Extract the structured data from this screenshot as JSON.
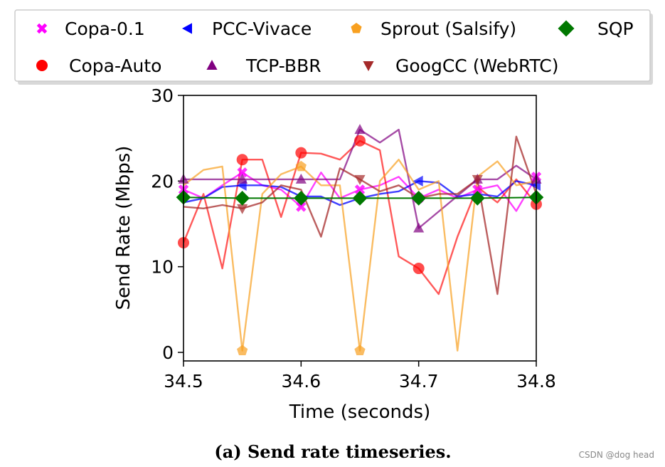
{
  "chart_data": {
    "type": "line",
    "xlabel": "Time (seconds)",
    "ylabel": "Send Rate (Mbps)",
    "xlim": [
      34.5,
      34.8
    ],
    "ylim": [
      -1,
      30
    ],
    "xticks": [
      34.5,
      34.6,
      34.7,
      34.8
    ],
    "xtick_labels": [
      "34.5",
      "34.6",
      "34.7",
      "34.8"
    ],
    "yticks": [
      0,
      10,
      20,
      30
    ],
    "ytick_labels": [
      "0",
      "10",
      "20",
      "30"
    ],
    "legend_position": "top",
    "series": [
      {
        "name": "Copa-0.1",
        "color": "#ff00ff",
        "marker": "x",
        "line_alpha": 0.75,
        "x": [
          34.5,
          34.517,
          34.533,
          34.55,
          34.567,
          34.583,
          34.6,
          34.617,
          34.633,
          34.65,
          34.667,
          34.683,
          34.7,
          34.717,
          34.733,
          34.75,
          34.767,
          34.783,
          34.8
        ],
        "y": [
          19,
          18,
          19.5,
          21,
          19.5,
          19,
          17,
          21,
          18,
          19,
          19.5,
          20.5,
          18,
          19,
          18,
          19,
          19.5,
          16.5,
          20.5
        ],
        "marker_x": [
          34.5,
          34.55,
          34.6,
          34.65,
          34.7,
          34.75,
          34.8
        ],
        "marker_y": [
          19,
          21,
          17,
          19,
          18,
          19,
          20.5
        ]
      },
      {
        "name": "Copa-Auto",
        "color": "#ff0000",
        "marker": "circle",
        "line_alpha": 0.65,
        "x": [
          34.5,
          34.517,
          34.533,
          34.55,
          34.567,
          34.583,
          34.6,
          34.617,
          34.633,
          34.65,
          34.667,
          34.683,
          34.7,
          34.717,
          34.733,
          34.75,
          34.767,
          34.783,
          34.8
        ],
        "y": [
          12.8,
          18.5,
          9.8,
          22.5,
          22.5,
          15.8,
          23.3,
          23.2,
          22.5,
          24.7,
          23.6,
          11.2,
          9.8,
          6.8,
          13.5,
          19.3,
          17.5,
          20.2,
          17.3
        ],
        "marker_x": [
          34.5,
          34.55,
          34.6,
          34.65,
          34.7,
          34.8
        ],
        "marker_y": [
          12.8,
          22.5,
          23.3,
          24.7,
          9.8,
          17.3
        ]
      },
      {
        "name": "PCC-Vivace",
        "color": "#0000ff",
        "marker": "triangle-left",
        "line_alpha": 0.75,
        "x": [
          34.5,
          34.517,
          34.533,
          34.55,
          34.567,
          34.583,
          34.6,
          34.617,
          34.633,
          34.65,
          34.667,
          34.683,
          34.7,
          34.717,
          34.733,
          34.75,
          34.767,
          34.783,
          34.8
        ],
        "y": [
          17.5,
          18.0,
          19.3,
          19.5,
          19.5,
          19.3,
          18.2,
          18.2,
          17.2,
          18.0,
          18.5,
          18.8,
          20.0,
          19.8,
          18.2,
          18.5,
          18.2,
          20.0,
          19.5
        ],
        "marker_x": [
          34.55,
          34.7,
          34.8
        ],
        "marker_y": [
          19.5,
          20.0,
          19.5
        ]
      },
      {
        "name": "TCP-BBR",
        "color": "#800080",
        "marker": "triangle-up",
        "line_alpha": 0.7,
        "x": [
          34.5,
          34.55,
          34.6,
          34.633,
          34.65,
          34.667,
          34.683,
          34.7,
          34.75,
          34.767,
          34.783,
          34.8
        ],
        "y": [
          20.2,
          20.2,
          20.2,
          20.2,
          26.0,
          24.5,
          26.0,
          14.5,
          20.2,
          20.2,
          21.8,
          20.2
        ],
        "marker_x": [
          34.5,
          34.55,
          34.6,
          34.65,
          34.7,
          34.75,
          34.8
        ],
        "marker_y": [
          20.2,
          20.2,
          20.2,
          26.0,
          14.5,
          20.2,
          20.2
        ]
      },
      {
        "name": "Sprout (Salsify)",
        "color": "#f8a020",
        "marker": "pentagon",
        "line_alpha": 0.7,
        "x": [
          34.5,
          34.517,
          34.533,
          34.55,
          34.567,
          34.583,
          34.6,
          34.617,
          34.633,
          34.65,
          34.667,
          34.683,
          34.7,
          34.717,
          34.733,
          34.75,
          34.767,
          34.783,
          34.8
        ],
        "y": [
          19.5,
          21.3,
          21.7,
          0.2,
          18.5,
          20.8,
          21.7,
          19.5,
          19.5,
          0.2,
          20.0,
          22.5,
          19.0,
          20.0,
          0.2,
          20.5,
          22.3,
          19.5,
          20.0
        ],
        "marker_x": [
          34.55,
          34.6,
          34.65
        ],
        "marker_y": [
          0.2,
          21.7,
          0.2
        ]
      },
      {
        "name": "GoogCC (WebRTC)",
        "color": "#a52a2a",
        "marker": "triangle-down",
        "line_alpha": 0.75,
        "x": [
          34.5,
          34.517,
          34.533,
          34.55,
          34.567,
          34.583,
          34.6,
          34.617,
          34.633,
          34.65,
          34.667,
          34.683,
          34.7,
          34.717,
          34.733,
          34.75,
          34.767,
          34.783,
          34.8
        ],
        "y": [
          17.0,
          16.8,
          17.2,
          16.8,
          17.5,
          19.5,
          19.0,
          13.5,
          21.5,
          20.2,
          18.8,
          19.5,
          18.0,
          18.5,
          18.5,
          20.2,
          6.8,
          25.2,
          18.5
        ],
        "marker_x": [
          34.55,
          34.65,
          34.75
        ],
        "marker_y": [
          16.8,
          20.2,
          20.2
        ]
      },
      {
        "name": "SQP",
        "color": "#007800",
        "marker": "diamond",
        "line_alpha": 1.0,
        "x": [
          34.5,
          34.55,
          34.6,
          34.65,
          34.7,
          34.75,
          34.8
        ],
        "y": [
          18.1,
          18.0,
          18.0,
          18.0,
          18.0,
          18.0,
          18.1
        ],
        "marker_x": [
          34.5,
          34.55,
          34.6,
          34.65,
          34.7,
          34.75,
          34.8
        ],
        "marker_y": [
          18.1,
          18.0,
          18.0,
          18.0,
          18.0,
          18.0,
          18.1
        ]
      }
    ]
  },
  "legend_order": [
    "Copa-0.1",
    "PCC-Vivace",
    "Sprout (Salsify)",
    "SQP",
    "Copa-Auto",
    "TCP-BBR",
    "GoogCC (WebRTC)"
  ],
  "caption": "(a) Send rate timeseries.",
  "watermark": "CSDN @dog head"
}
